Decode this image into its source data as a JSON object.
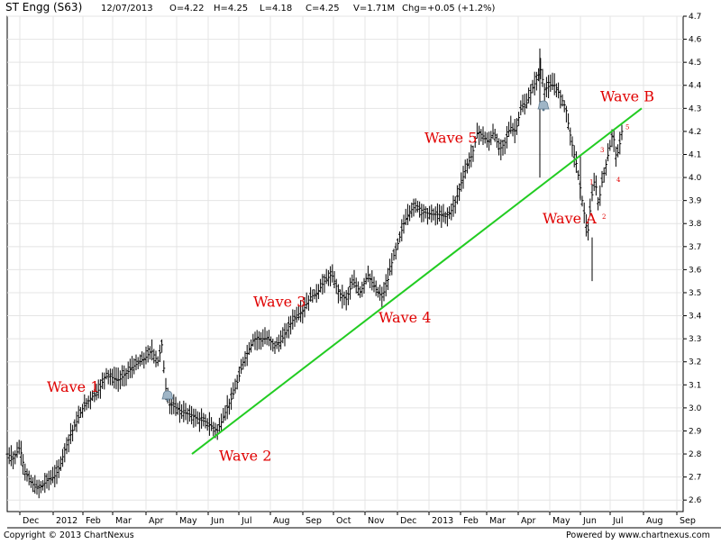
{
  "header": {
    "title": "ST Engg (S63)",
    "date": "12/07/2013",
    "open": "O=4.22",
    "high": "H=4.25",
    "low": "L=4.18",
    "close": "C=4.25",
    "volume": "V=1.71M",
    "change": "Chg=+0.05 (+1.2%)"
  },
  "footer": {
    "copyright": "Copyright © 2013 ChartNexus",
    "powered_by": "Powered by www.chartnexus.com"
  },
  "chart_data": {
    "type": "line",
    "ylim": [
      2.55,
      4.7
    ],
    "yticks": [
      2.6,
      2.7,
      2.8,
      2.9,
      3.0,
      3.1,
      3.2,
      3.3,
      3.4,
      3.5,
      3.6,
      3.7,
      3.8,
      3.9,
      4.0,
      4.1,
      4.2,
      4.3,
      4.4,
      4.5,
      4.6,
      4.7
    ],
    "xlim": [
      0,
      765
    ],
    "x_ticks": [
      {
        "label": "Dec",
        "x": 22
      },
      {
        "label": "2012",
        "x": 59
      },
      {
        "label": "Feb",
        "x": 92
      },
      {
        "label": "Mar",
        "x": 125
      },
      {
        "label": "Apr",
        "x": 162
      },
      {
        "label": "May",
        "x": 196
      },
      {
        "label": "Jun",
        "x": 231
      },
      {
        "label": "Jul",
        "x": 265
      },
      {
        "label": "Aug",
        "x": 300
      },
      {
        "label": "Sep",
        "x": 336
      },
      {
        "label": "Oct",
        "x": 370
      },
      {
        "label": "Nov",
        "x": 405
      },
      {
        "label": "Dec",
        "x": 441
      },
      {
        "label": "2013",
        "x": 476
      },
      {
        "label": "Feb",
        "x": 511
      },
      {
        "label": "Mar",
        "x": 540
      },
      {
        "label": "Apr",
        "x": 575
      },
      {
        "label": "May",
        "x": 610
      },
      {
        "label": "Jun",
        "x": 644
      },
      {
        "label": "Jul",
        "x": 677
      },
      {
        "label": "Aug",
        "x": 714
      },
      {
        "label": "Sep",
        "x": 751
      }
    ],
    "price_series": {
      "x": [
        8,
        15,
        22,
        28,
        34,
        40,
        47,
        53,
        60,
        66,
        72,
        78,
        85,
        92,
        100,
        110,
        118,
        125,
        132,
        140,
        148,
        155,
        162,
        168,
        175,
        180,
        183,
        188,
        195,
        203,
        212,
        220,
        228,
        235,
        241,
        247,
        252,
        258,
        264,
        270,
        276,
        282,
        290,
        297,
        305,
        312,
        320,
        328,
        336,
        344,
        352,
        360,
        368,
        376,
        384,
        392,
        400,
        408,
        416,
        424,
        430,
        436,
        442,
        448,
        454,
        462,
        470,
        478,
        486,
        494,
        500,
        506,
        512,
        518,
        524,
        530,
        536,
        542,
        548,
        554,
        560,
        566,
        572,
        578,
        584,
        590,
        596,
        600,
        604,
        610,
        616,
        622,
        628,
        632,
        636,
        640,
        644,
        648,
        652,
        656,
        660,
        664,
        668,
        672,
        676,
        680,
        684,
        688,
        692
      ],
      "y": [
        2.8,
        2.78,
        2.83,
        2.72,
        2.68,
        2.65,
        2.66,
        2.69,
        2.7,
        2.74,
        2.82,
        2.88,
        2.94,
        3.0,
        3.04,
        3.08,
        3.15,
        3.13,
        3.12,
        3.15,
        3.18,
        3.2,
        3.22,
        3.25,
        3.2,
        3.28,
        3.1,
        3.02,
        3.0,
        2.98,
        2.97,
        2.95,
        2.94,
        2.92,
        2.9,
        2.95,
        3.0,
        3.05,
        3.12,
        3.2,
        3.25,
        3.3,
        3.3,
        3.3,
        3.27,
        3.29,
        3.35,
        3.4,
        3.42,
        3.48,
        3.5,
        3.55,
        3.58,
        3.5,
        3.47,
        3.55,
        3.5,
        3.58,
        3.52,
        3.48,
        3.55,
        3.65,
        3.72,
        3.8,
        3.85,
        3.88,
        3.85,
        3.84,
        3.84,
        3.83,
        3.85,
        3.9,
        3.98,
        4.05,
        4.1,
        4.2,
        4.18,
        4.15,
        4.2,
        4.12,
        4.15,
        4.22,
        4.2,
        4.3,
        4.32,
        4.38,
        4.43,
        4.47,
        4.38,
        4.4,
        4.4,
        4.35,
        4.3,
        4.2,
        4.12,
        4.05,
        3.95,
        3.85,
        3.75,
        3.9,
        4.0,
        3.88,
        3.98,
        4.05,
        4.12,
        4.2,
        4.08,
        4.15,
        4.25
      ]
    },
    "trend_line": {
      "x1": 213,
      "y1": 2.8,
      "x2": 712,
      "y2": 4.3,
      "color": "#22cc22"
    },
    "wave_labels": [
      {
        "text": "Wave 1",
        "x": 52,
        "y": 3.07
      },
      {
        "text": "Wave 2",
        "x": 243,
        "y": 2.77
      },
      {
        "text": "Wave 3",
        "x": 281,
        "y": 3.44
      },
      {
        "text": "Wave 4",
        "x": 420,
        "y": 3.37
      },
      {
        "text": "Wave 5",
        "x": 471,
        "y": 4.15
      },
      {
        "text": "Wave A",
        "x": 602,
        "y": 3.8
      },
      {
        "text": "Wave B",
        "x": 666,
        "y": 4.33
      }
    ],
    "sub_wave_labels": [
      {
        "text": "1",
        "x": 654,
        "y": 3.97
      },
      {
        "text": "2",
        "x": 668,
        "y": 3.82
      },
      {
        "text": "3",
        "x": 666,
        "y": 4.11
      },
      {
        "text": "4",
        "x": 684,
        "y": 3.98
      },
      {
        "text": "5",
        "x": 694,
        "y": 4.21
      }
    ],
    "colors": {
      "price": "#000000",
      "trend": "#22cc22",
      "annotation": "#e00000",
      "grid": "#e4e4e4"
    },
    "grid": true
  }
}
